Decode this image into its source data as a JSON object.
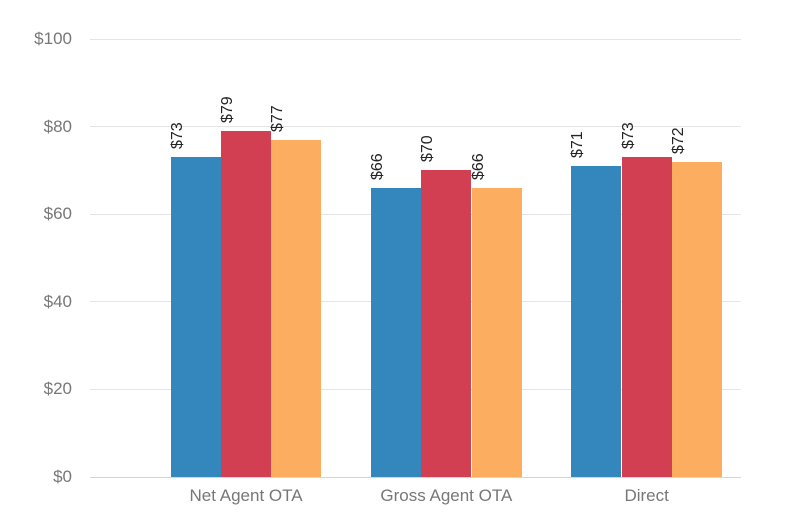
{
  "chart_data": {
    "type": "bar",
    "title": "",
    "xlabel": "",
    "ylabel": "",
    "categories": [
      "Net Agent OTA",
      "Gross Agent OTA",
      "Direct"
    ],
    "series": [
      {
        "color": "#3487BD",
        "values": [
          73,
          66,
          71
        ],
        "labels": [
          "$73",
          "$66",
          "$71"
        ]
      },
      {
        "color": "#D23F53",
        "values": [
          79,
          70,
          73
        ],
        "labels": [
          "$79",
          "$70",
          "$73"
        ]
      },
      {
        "color": "#FCAD60",
        "values": [
          77,
          66,
          72
        ],
        "labels": [
          "$77",
          "$66",
          "$72"
        ]
      }
    ],
    "y_ticks": [
      {
        "value": 0,
        "label": "$0"
      },
      {
        "value": 20,
        "label": "$20"
      },
      {
        "value": 40,
        "label": "$40"
      },
      {
        "value": 60,
        "label": "$60"
      },
      {
        "value": 80,
        "label": "$80"
      },
      {
        "value": 100,
        "label": "$100"
      }
    ],
    "ylim": [
      0,
      100
    ],
    "grid": true,
    "legend": "none",
    "data_label_rotation": -90,
    "value_prefix": "$"
  },
  "colors": {
    "grid": "#E4E4E4",
    "axis_line": "#D5D5D5",
    "tick_label": "#777777",
    "data_label": "#252423",
    "background": "#FFFFFF"
  }
}
